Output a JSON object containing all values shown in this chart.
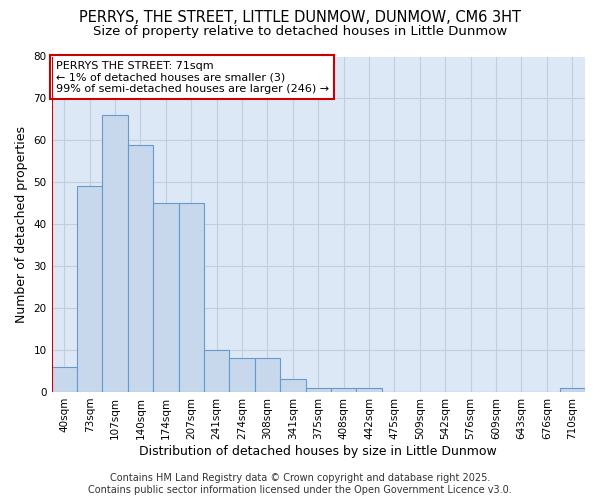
{
  "title": "PERRYS, THE STREET, LITTLE DUNMOW, DUNMOW, CM6 3HT",
  "subtitle": "Size of property relative to detached houses in Little Dunmow",
  "xlabel": "Distribution of detached houses by size in Little Dunmow",
  "ylabel": "Number of detached properties",
  "bin_labels": [
    "40sqm",
    "73sqm",
    "107sqm",
    "140sqm",
    "174sqm",
    "207sqm",
    "241sqm",
    "274sqm",
    "308sqm",
    "341sqm",
    "375sqm",
    "408sqm",
    "442sqm",
    "475sqm",
    "509sqm",
    "542sqm",
    "576sqm",
    "609sqm",
    "643sqm",
    "676sqm",
    "710sqm"
  ],
  "values": [
    6,
    49,
    66,
    59,
    45,
    45,
    10,
    8,
    8,
    3,
    1,
    1,
    1,
    0,
    0,
    0,
    0,
    0,
    0,
    0,
    1
  ],
  "bar_color": "#c8d8ec",
  "bar_edge_color": "#6699cc",
  "highlight_bar_index": 0,
  "highlight_edge_color": "#cc0000",
  "annotation_text": "PERRYS THE STREET: 71sqm\n← 1% of detached houses are smaller (3)\n99% of semi-detached houses are larger (246) →",
  "annotation_box_color": "#ffffff",
  "annotation_box_edge": "#cc0000",
  "ylim": [
    0,
    80
  ],
  "yticks": [
    0,
    10,
    20,
    30,
    40,
    50,
    60,
    70,
    80
  ],
  "grid_color": "#c0cfe0",
  "plot_bg_color": "#dce8f5",
  "fig_bg_color": "#ffffff",
  "footer_line1": "Contains HM Land Registry data © Crown copyright and database right 2025.",
  "footer_line2": "Contains public sector information licensed under the Open Government Licence v3.0.",
  "title_fontsize": 10.5,
  "subtitle_fontsize": 9.5,
  "axis_label_fontsize": 9,
  "tick_fontsize": 7.5,
  "annotation_fontsize": 8,
  "footer_fontsize": 7
}
